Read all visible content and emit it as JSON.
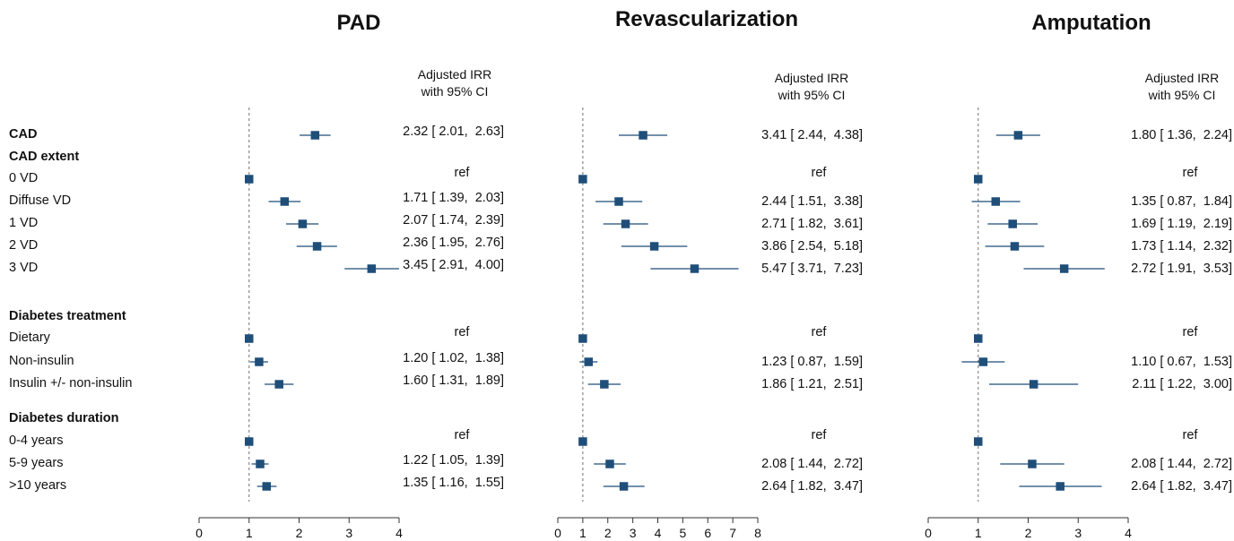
{
  "colors": {
    "point": "#1f4e79",
    "line": "#1f4e79",
    "ref_line": "#888888",
    "axis": "#333333"
  },
  "chart_data": {
    "type": "forest",
    "column_header": [
      "Adjusted IRR",
      "with 95% CI"
    ],
    "rows": [
      {
        "label": "CAD",
        "bold": true
      },
      {
        "label": "CAD extent",
        "bold": true
      },
      {
        "label": "0 VD"
      },
      {
        "label": "Diffuse VD"
      },
      {
        "label": "1 VD"
      },
      {
        "label": "2 VD"
      },
      {
        "label": "3 VD"
      },
      {
        "label": "Diabetes treatment",
        "bold": true
      },
      {
        "label": "Dietary"
      },
      {
        "label": "Non-insulin"
      },
      {
        "label": "Insulin +/- non-insulin"
      },
      {
        "label": "Diabetes duration",
        "bold": true
      },
      {
        "label": "0-4 years"
      },
      {
        "label": "5-9 years"
      },
      {
        "label": ">10 years"
      }
    ],
    "panels": [
      {
        "title": "PAD",
        "xlim": [
          0,
          4
        ],
        "ticks": [
          "0",
          "1",
          "2",
          "3",
          "4"
        ],
        "ref_value": 1,
        "entries": [
          {
            "row": 0,
            "est": 2.32,
            "lo": 2.01,
            "hi": 2.63,
            "text": "2.32 [ 2.01,  2.63]"
          },
          {
            "row": 2,
            "est": 1,
            "ref": true,
            "text": "ref"
          },
          {
            "row": 3,
            "est": 1.71,
            "lo": 1.39,
            "hi": 2.03,
            "text": "1.71 [ 1.39,  2.03]"
          },
          {
            "row": 4,
            "est": 2.07,
            "lo": 1.74,
            "hi": 2.39,
            "text": "2.07 [ 1.74,  2.39]"
          },
          {
            "row": 5,
            "est": 2.36,
            "lo": 1.95,
            "hi": 2.76,
            "text": "2.36 [ 1.95,  2.76]"
          },
          {
            "row": 6,
            "est": 3.45,
            "lo": 2.91,
            "hi": 4.0,
            "text": "3.45 [ 2.91,  4.00]"
          },
          {
            "row": 8,
            "est": 1,
            "ref": true,
            "text": "ref"
          },
          {
            "row": 9,
            "est": 1.2,
            "lo": 1.02,
            "hi": 1.38,
            "text": "1.20 [ 1.02,  1.38]"
          },
          {
            "row": 10,
            "est": 1.6,
            "lo": 1.31,
            "hi": 1.89,
            "text": "1.60 [ 1.31,  1.89]"
          },
          {
            "row": 12,
            "est": 1,
            "ref": true,
            "text": "ref"
          },
          {
            "row": 13,
            "est": 1.22,
            "lo": 1.05,
            "hi": 1.39,
            "text": "1.22 [ 1.05,  1.39]"
          },
          {
            "row": 14,
            "est": 1.35,
            "lo": 1.16,
            "hi": 1.55,
            "text": "1.35 [ 1.16,  1.55]"
          }
        ]
      },
      {
        "title": "Revascularization",
        "xlim": [
          0,
          8
        ],
        "ticks": [
          "0",
          "1",
          "2",
          "3",
          "4",
          "5",
          "6",
          "7",
          "8"
        ],
        "ref_value": 1,
        "entries": [
          {
            "row": 0,
            "est": 3.41,
            "lo": 2.44,
            "hi": 4.38,
            "text": "3.41 [ 2.44,  4.38]"
          },
          {
            "row": 2,
            "est": 1,
            "ref": true,
            "text": "ref"
          },
          {
            "row": 3,
            "est": 2.44,
            "lo": 1.51,
            "hi": 3.38,
            "text": "2.44 [ 1.51,  3.38]"
          },
          {
            "row": 4,
            "est": 2.71,
            "lo": 1.82,
            "hi": 3.61,
            "text": "2.71 [ 1.82,  3.61]"
          },
          {
            "row": 5,
            "est": 3.86,
            "lo": 2.54,
            "hi": 5.18,
            "text": "3.86 [ 2.54,  5.18]"
          },
          {
            "row": 6,
            "est": 5.47,
            "lo": 3.71,
            "hi": 7.23,
            "text": "5.47 [ 3.71,  7.23]"
          },
          {
            "row": 8,
            "est": 1,
            "ref": true,
            "text": "ref"
          },
          {
            "row": 9,
            "est": 1.23,
            "lo": 0.87,
            "hi": 1.59,
            "text": "1.23 [ 0.87,  1.59]"
          },
          {
            "row": 10,
            "est": 1.86,
            "lo": 1.21,
            "hi": 2.51,
            "text": "1.86 [ 1.21,  2.51]"
          },
          {
            "row": 12,
            "est": 1,
            "ref": true,
            "text": "ref"
          },
          {
            "row": 13,
            "est": 2.08,
            "lo": 1.44,
            "hi": 2.72,
            "text": "2.08 [ 1.44,  2.72]"
          },
          {
            "row": 14,
            "est": 2.64,
            "lo": 1.82,
            "hi": 3.47,
            "text": "2.64 [ 1.82,  3.47]"
          }
        ]
      },
      {
        "title": "Amputation",
        "xlim": [
          0,
          4
        ],
        "ticks": [
          "0",
          "1",
          "2",
          "3",
          "4"
        ],
        "ref_value": 1,
        "entries": [
          {
            "row": 0,
            "est": 1.8,
            "lo": 1.36,
            "hi": 2.24,
            "text": "1.80 [ 1.36,  2.24]"
          },
          {
            "row": 2,
            "est": 1,
            "ref": true,
            "text": "ref"
          },
          {
            "row": 3,
            "est": 1.35,
            "lo": 0.87,
            "hi": 1.84,
            "text": "1.35 [ 0.87,  1.84]"
          },
          {
            "row": 4,
            "est": 1.69,
            "lo": 1.19,
            "hi": 2.19,
            "text": "1.69 [ 1.19,  2.19]"
          },
          {
            "row": 5,
            "est": 1.73,
            "lo": 1.14,
            "hi": 2.32,
            "text": "1.73 [ 1.14,  2.32]"
          },
          {
            "row": 6,
            "est": 2.72,
            "lo": 1.91,
            "hi": 3.53,
            "text": "2.72 [ 1.91,  3.53]"
          },
          {
            "row": 8,
            "est": 1,
            "ref": true,
            "text": "ref"
          },
          {
            "row": 9,
            "est": 1.1,
            "lo": 0.67,
            "hi": 1.53,
            "text": "1.10 [ 0.67,  1.53]"
          },
          {
            "row": 10,
            "est": 2.11,
            "lo": 1.22,
            "hi": 3.0,
            "text": "2.11 [ 1.22,  3.00]"
          },
          {
            "row": 12,
            "est": 1,
            "ref": true,
            "text": "ref"
          },
          {
            "row": 13,
            "est": 2.08,
            "lo": 1.44,
            "hi": 2.72,
            "text": "2.08 [ 1.44,  2.72]"
          },
          {
            "row": 14,
            "est": 2.64,
            "lo": 1.82,
            "hi": 3.47,
            "text": "2.64 [ 1.82,  3.47]"
          }
        ]
      }
    ]
  }
}
